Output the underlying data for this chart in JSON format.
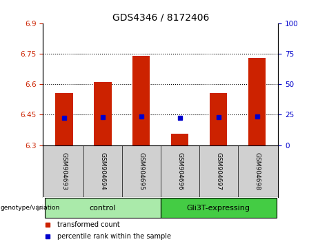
{
  "title": "GDS4346 / 8172406",
  "samples": [
    "GSM904693",
    "GSM904694",
    "GSM904695",
    "GSM904696",
    "GSM904697",
    "GSM904698"
  ],
  "bar_tops": [
    6.555,
    6.61,
    6.74,
    6.355,
    6.555,
    6.73
  ],
  "bar_bottom": 6.3,
  "blue_dots_y": [
    6.435,
    6.438,
    6.44,
    6.435,
    6.438,
    6.44
  ],
  "ylim_left": [
    6.3,
    6.9
  ],
  "ylim_right": [
    0,
    100
  ],
  "yticks_left": [
    6.3,
    6.45,
    6.6,
    6.75,
    6.9
  ],
  "ytick_labels_left": [
    "6.3",
    "6.45",
    "6.6",
    "6.75",
    "6.9"
  ],
  "yticks_right": [
    0,
    25,
    50,
    75,
    100
  ],
  "ytick_labels_right": [
    "0",
    "25",
    "50",
    "75",
    "100"
  ],
  "hlines": [
    6.45,
    6.6,
    6.75
  ],
  "bar_color": "#cc2200",
  "dot_color": "#0000cc",
  "bar_width": 0.45,
  "group_control_color": "#aaeaaa",
  "group_gli3t_color": "#44cc44",
  "group_label_bg": "#d0d0d0",
  "axis_color_left": "#cc2200",
  "axis_color_right": "#0000cc",
  "legend_items": [
    "transformed count",
    "percentile rank within the sample"
  ],
  "title_fontsize": 10,
  "tick_fontsize": 7.5,
  "sample_fontsize": 6.5,
  "group_fontsize": 8
}
